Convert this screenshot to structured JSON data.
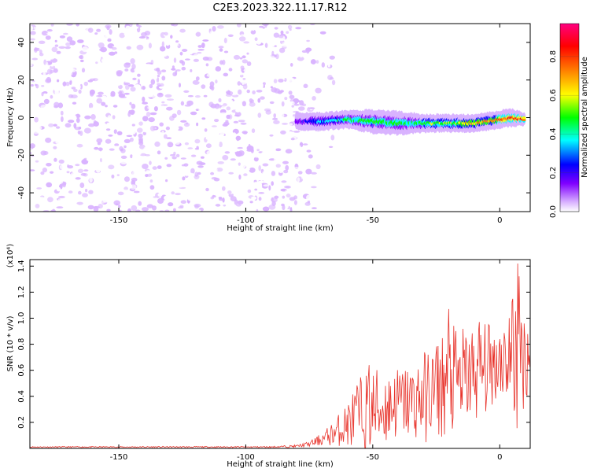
{
  "title": "C2E3.2023.322.11.17.R12",
  "chart_data": [
    {
      "type": "heatmap",
      "xlabel": "Height of straight line (km)",
      "ylabel": "Frequency (Hz)",
      "xlim": [
        -185,
        12
      ],
      "ylim": [
        -50,
        50
      ],
      "xticks": [
        -150,
        -100,
        -50,
        0
      ],
      "yticks": [
        -40,
        -20,
        0,
        20,
        40
      ],
      "noise_region_x": [
        -185,
        -80
      ],
      "signal_band": {
        "x": [
          -80,
          -70,
          -60,
          -50,
          -40,
          -30,
          -20,
          -10,
          0,
          5,
          10
        ],
        "center_hz": [
          -2,
          -2,
          -1,
          -2,
          -3,
          -3,
          -3,
          -3,
          -1,
          0,
          -1
        ],
        "halfwidth_hz": [
          3,
          3,
          3,
          4,
          4,
          3,
          3,
          3,
          3,
          3,
          2
        ],
        "peak_amplitude": [
          0.25,
          0.45,
          0.55,
          0.6,
          0.55,
          0.6,
          0.65,
          0.75,
          0.85,
          0.9,
          0.85
        ]
      },
      "colorbar": {
        "label": "Normalized spectral amplitude",
        "range": [
          0,
          0.97
        ],
        "ticks": [
          0.0,
          0.2,
          0.4,
          0.6,
          0.8
        ],
        "tick_labels": [
          "0.0",
          "0.2",
          "0.4",
          "0.6",
          "0.8"
        ],
        "colors": [
          "#ffffff",
          "#d9b3ff",
          "#8000ff",
          "#0000ff",
          "#00ffff",
          "#00ff00",
          "#ffff00",
          "#ff8000",
          "#ff0000",
          "#ff0080"
        ]
      }
    },
    {
      "type": "line",
      "xlabel": "Height of straight line (km)",
      "ylabel": "SNR (10 * v/v)",
      "yscale_label": "(x10⁴)",
      "xlim": [
        -185,
        12
      ],
      "ylim": [
        0,
        1.45
      ],
      "xticks": [
        -150,
        -100,
        -50,
        0
      ],
      "yticks": [
        0.2,
        0.4,
        0.6,
        0.8,
        1.0,
        1.2,
        1.4
      ],
      "ytick_labels": [
        "0.2",
        "0.4",
        "0.6",
        "0.8",
        "1.0",
        "1.2",
        "1.4"
      ],
      "color": "#e8332b",
      "envelope": {
        "x": [
          -185,
          -90,
          -80,
          -75,
          -70,
          -65,
          -60,
          -55,
          -50,
          -45,
          -40,
          -35,
          -30,
          -25,
          -20,
          -15,
          -10,
          -5,
          0,
          3,
          5,
          7,
          9,
          12
        ],
        "base": [
          0.01,
          0.01,
          0.015,
          0.03,
          0.06,
          0.1,
          0.15,
          0.2,
          0.22,
          0.25,
          0.3,
          0.3,
          0.32,
          0.38,
          0.42,
          0.45,
          0.5,
          0.55,
          0.62,
          0.62,
          0.6,
          0.55,
          0.6,
          0.7
        ],
        "amplitude": [
          0.004,
          0.005,
          0.01,
          0.02,
          0.05,
          0.1,
          0.18,
          0.3,
          0.35,
          0.3,
          0.28,
          0.3,
          0.35,
          0.4,
          0.45,
          0.4,
          0.4,
          0.35,
          0.3,
          0.35,
          0.6,
          0.8,
          0.4,
          0.3
        ]
      },
      "peaks": [
        {
          "x": -51.5,
          "y": 0.64
        },
        {
          "x": -20,
          "y": 1.07
        },
        {
          "x": -8,
          "y": 0.97
        },
        {
          "x": 0,
          "y": 0.84
        },
        {
          "x": 7,
          "y": 1.42
        }
      ]
    }
  ]
}
